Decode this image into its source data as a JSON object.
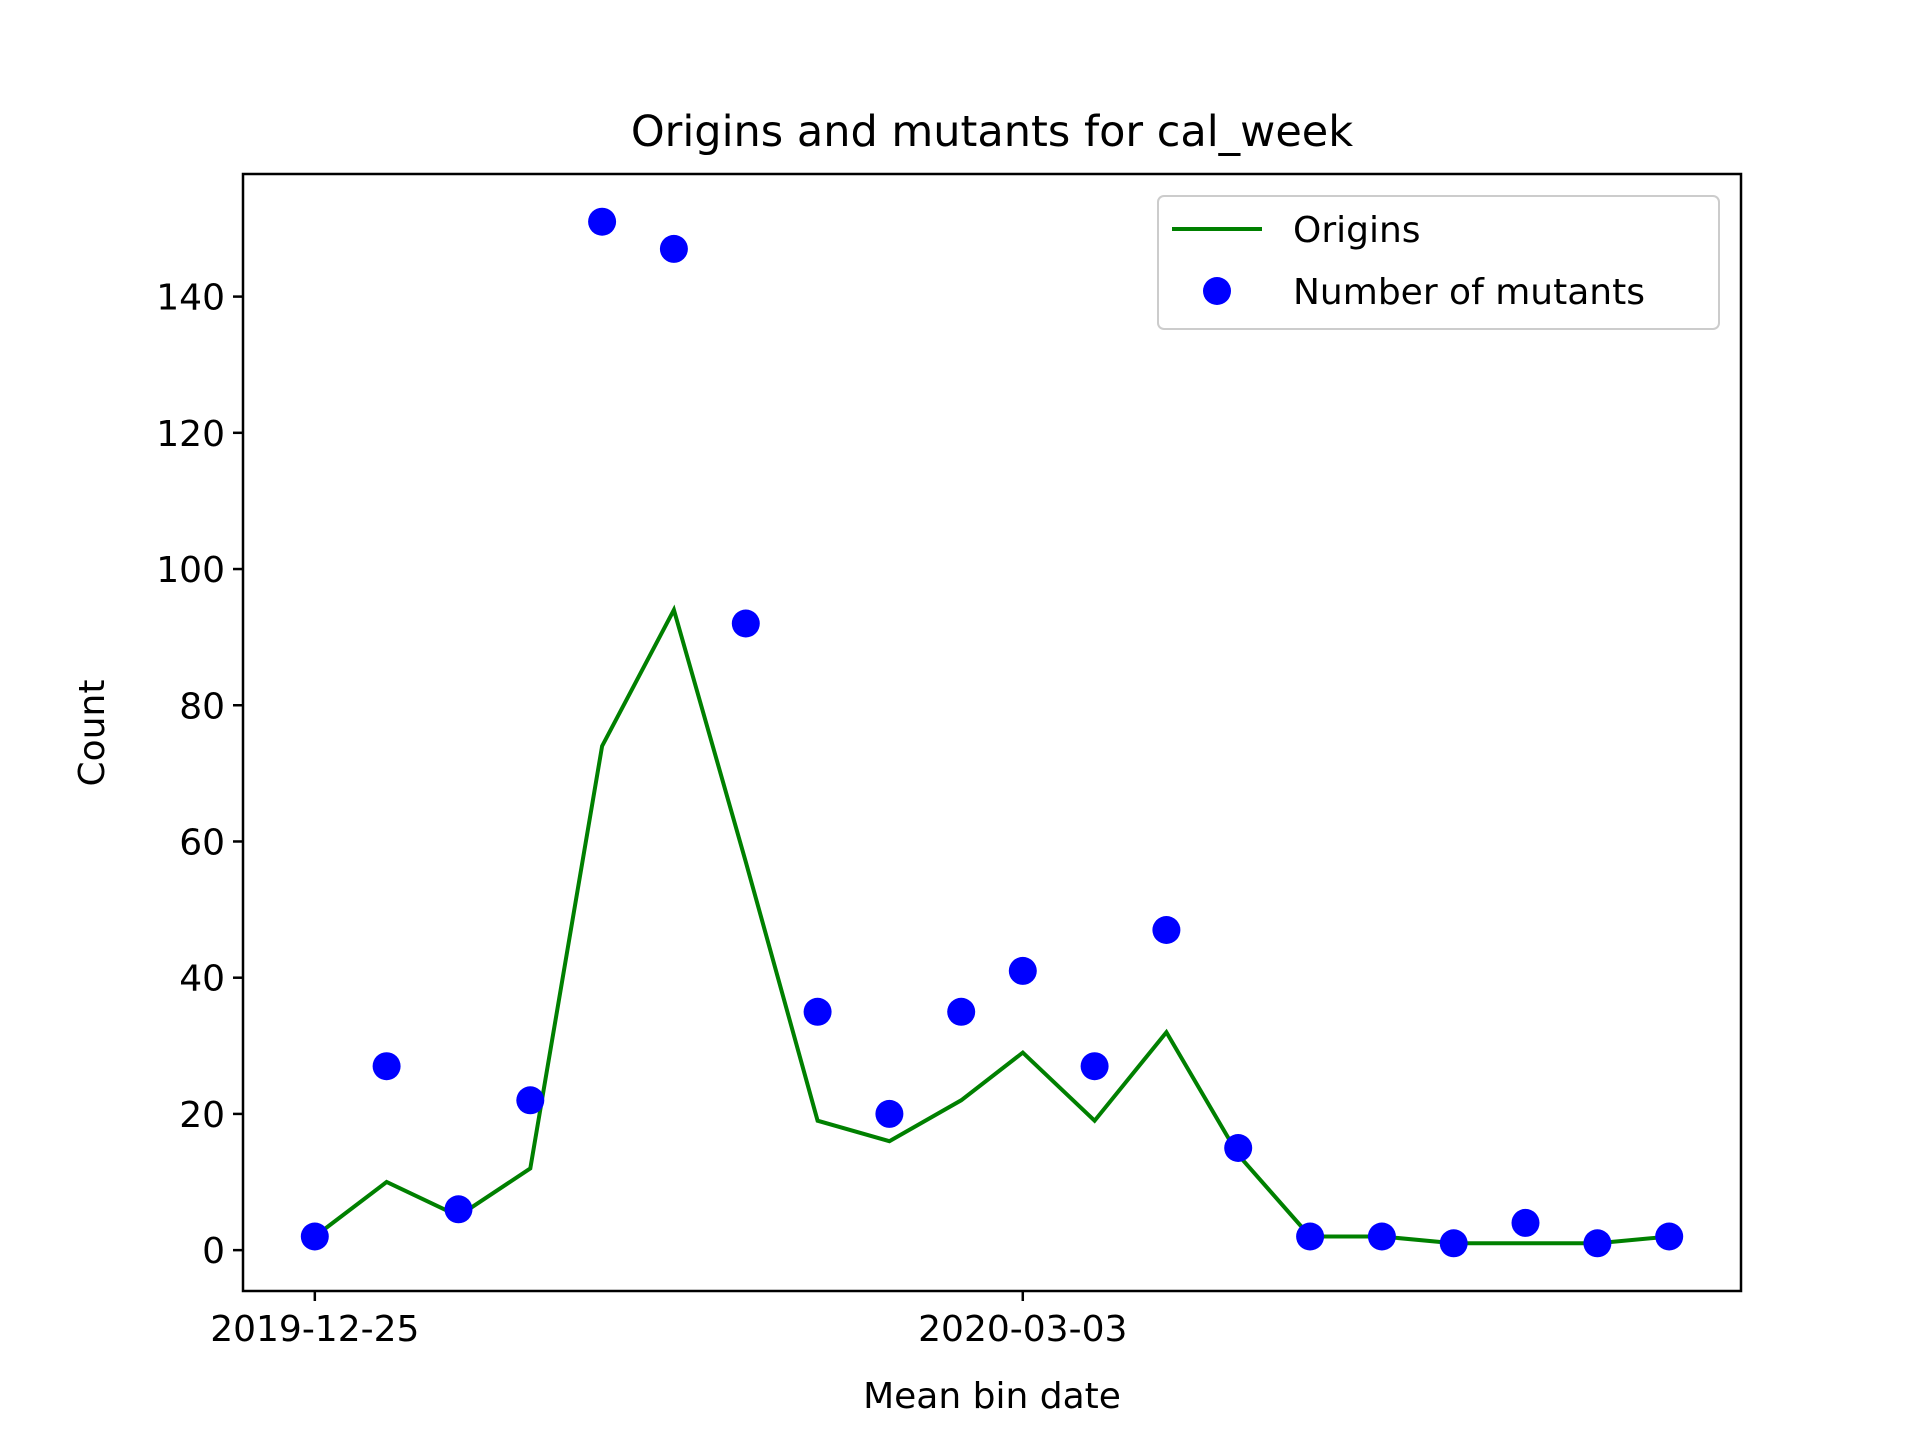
{
  "chart_data": {
    "type": "scatter",
    "title": "Origins and mutants for cal_week",
    "xlabel": "Mean bin date",
    "ylabel": "Count",
    "x": [
      "2019-12-25",
      "2020-01-01",
      "2020-01-08",
      "2020-01-15",
      "2020-01-22",
      "2020-01-29",
      "2020-02-05",
      "2020-02-12",
      "2020-02-19",
      "2020-02-26",
      "2020-03-03",
      "2020-03-10",
      "2020-03-17",
      "2020-03-24",
      "2020-03-31",
      "2020-04-07",
      "2020-04-14",
      "2020-04-21",
      "2020-04-28",
      "2020-05-05"
    ],
    "xlim": [
      "2019-12-18",
      "2020-05-12"
    ],
    "xticks": [
      "2019-12-25",
      "2020-03-03"
    ],
    "ylim": [
      -6,
      158
    ],
    "yticks": [
      0,
      20,
      40,
      60,
      80,
      100,
      120,
      140
    ],
    "grid": false,
    "legend": "top-right",
    "series": [
      {
        "name": "Origins",
        "kind": "line",
        "color": "#008000",
        "values": [
          2,
          10,
          5,
          12,
          74,
          94,
          57,
          19,
          16,
          22,
          29,
          19,
          32,
          14,
          2,
          2,
          1,
          1,
          1,
          2
        ]
      },
      {
        "name": "Number of mutants",
        "kind": "scatter",
        "color": "#0000ff",
        "values": [
          2,
          27,
          6,
          22,
          151,
          147,
          92,
          35,
          20,
          35,
          41,
          27,
          47,
          15,
          2,
          2,
          1,
          4,
          1,
          2
        ]
      }
    ]
  }
}
